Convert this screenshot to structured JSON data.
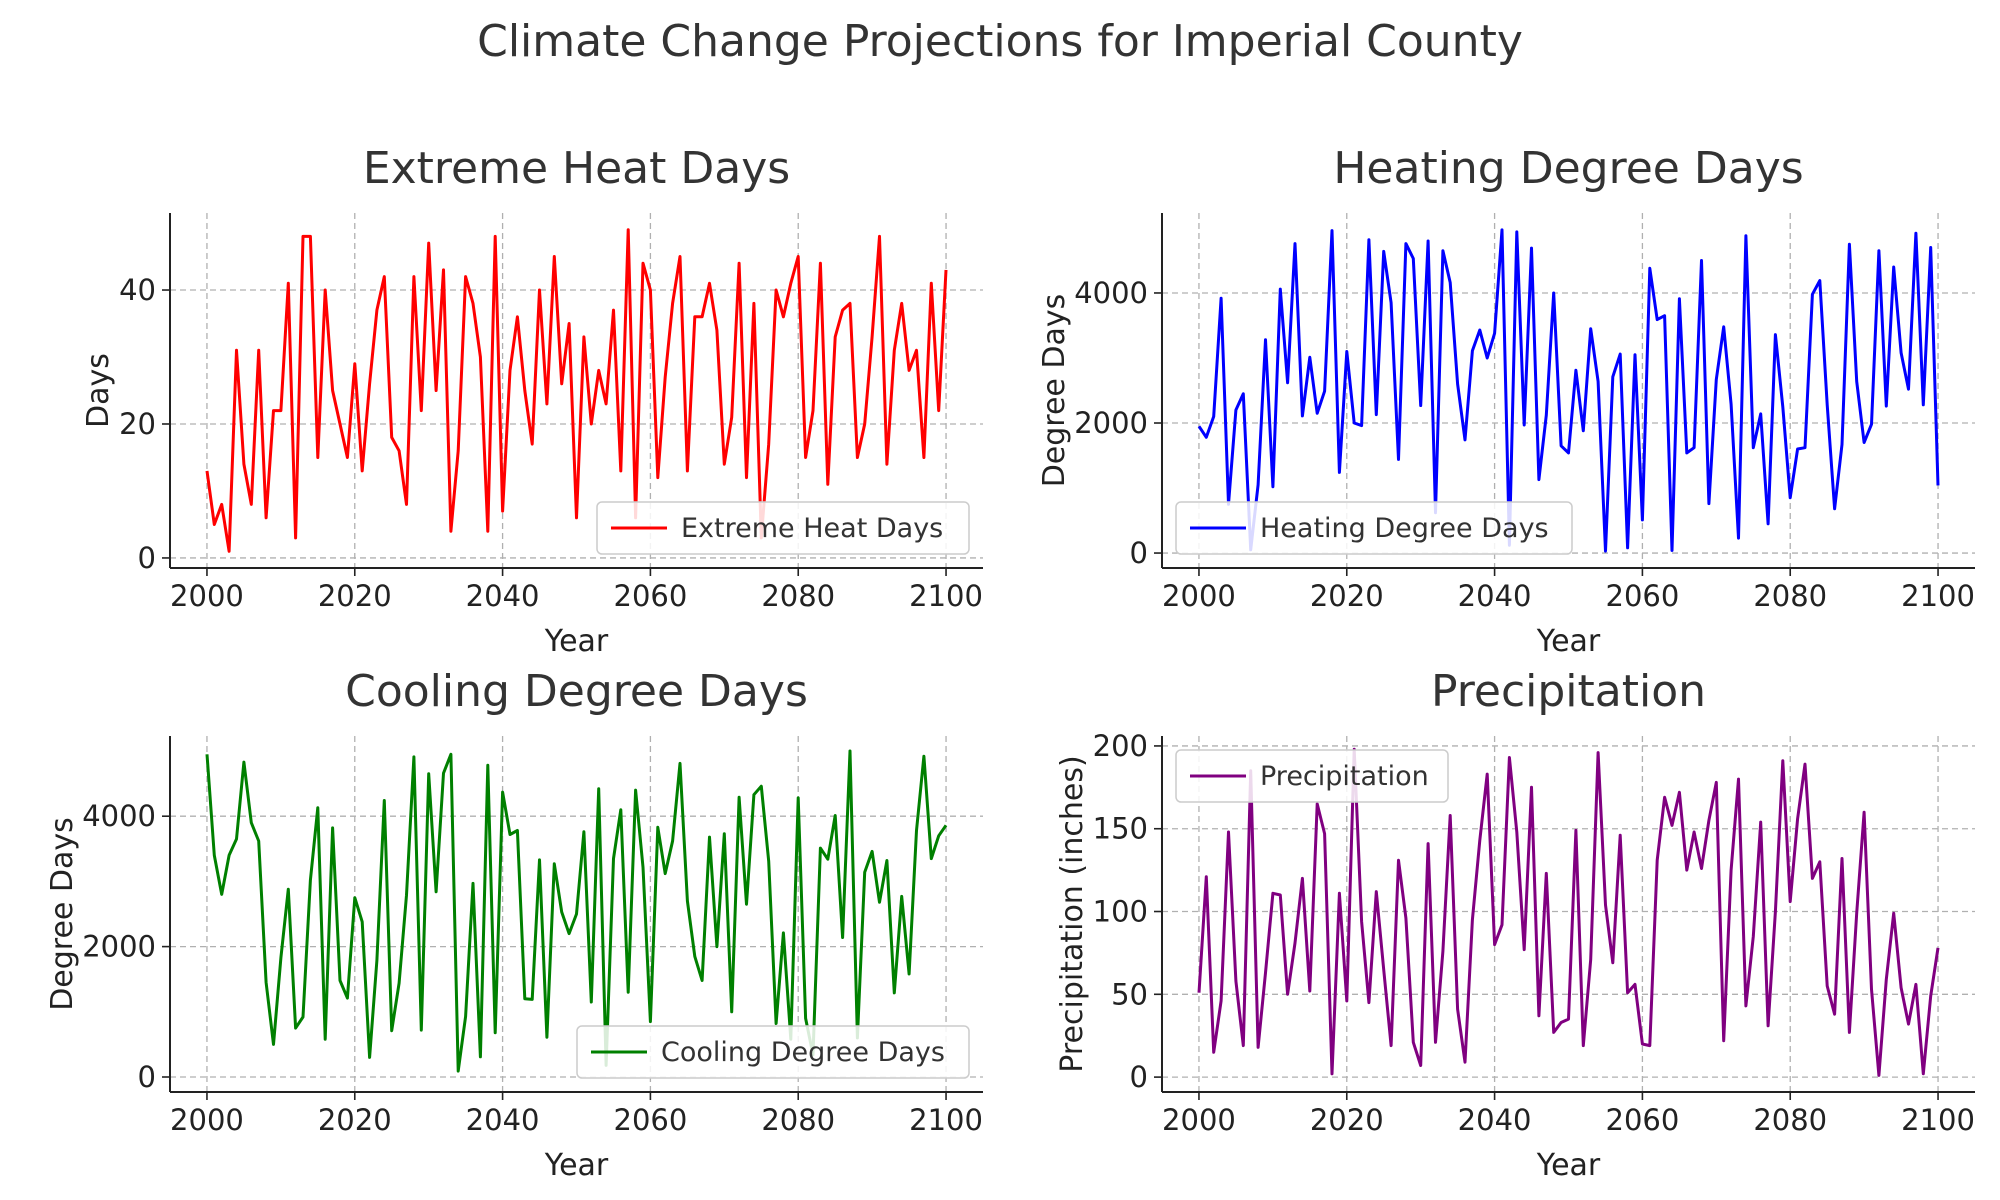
{
  "suptitle": "Climate Change Projections for Imperial County",
  "chart_data": [
    {
      "type": "line",
      "title": "Extreme Heat Days",
      "xlabel": "Year",
      "ylabel": "Days",
      "xlim": [
        1995,
        2105
      ],
      "ylim": [
        -1.5,
        51.5
      ],
      "xticks": [
        2000,
        2020,
        2040,
        2060,
        2080,
        2100
      ],
      "yticks": [
        0,
        20,
        40
      ],
      "grid": true,
      "legend_location": "lower-right",
      "series": [
        {
          "name": "Extreme Heat Days",
          "color": "#ff0000",
          "x": [
            2000,
            2001,
            2002,
            2003,
            2004,
            2005,
            2006,
            2007,
            2008,
            2009,
            2010,
            2011,
            2012,
            2013,
            2014,
            2015,
            2016,
            2017,
            2018,
            2019,
            2020,
            2021,
            2022,
            2023,
            2024,
            2025,
            2026,
            2027,
            2028,
            2029,
            2030,
            2031,
            2032,
            2033,
            2034,
            2035,
            2036,
            2037,
            2038,
            2039,
            2040,
            2041,
            2042,
            2043,
            2044,
            2045,
            2046,
            2047,
            2048,
            2049,
            2050,
            2051,
            2052,
            2053,
            2054,
            2055,
            2056,
            2057,
            2058,
            2059,
            2060,
            2061,
            2062,
            2063,
            2064,
            2065,
            2066,
            2067,
            2068,
            2069,
            2070,
            2071,
            2072,
            2073,
            2074,
            2075,
            2076,
            2077,
            2078,
            2079,
            2080,
            2081,
            2082,
            2083,
            2084,
            2085,
            2086,
            2087,
            2088,
            2089,
            2090,
            2091,
            2092,
            2093,
            2094,
            2095,
            2096,
            2097,
            2098,
            2099,
            2100
          ],
          "values": [
            13,
            5,
            8,
            1,
            31,
            14,
            8,
            31,
            6,
            22,
            22,
            41,
            3,
            48,
            48,
            15,
            40,
            25,
            20,
            15,
            29,
            13,
            26,
            37,
            42,
            18,
            16,
            8,
            42,
            22,
            47,
            25,
            43,
            4,
            16,
            42,
            38,
            30,
            4,
            48,
            7,
            28,
            36,
            25,
            17,
            40,
            23,
            45,
            26,
            35,
            6,
            33,
            20,
            28,
            23,
            37,
            13,
            49,
            6,
            44,
            40,
            12,
            27,
            38,
            45,
            13,
            36,
            36,
            41,
            34,
            14,
            21,
            44,
            12,
            38,
            3,
            17,
            40,
            36,
            41,
            45,
            15,
            22,
            44,
            11,
            33,
            37,
            38,
            15,
            20,
            33,
            48,
            14,
            31,
            38,
            28,
            31,
            15,
            41,
            22,
            43
          ]
        }
      ]
    },
    {
      "type": "line",
      "title": "Heating Degree Days",
      "xlabel": "Year",
      "ylabel": "Degree Days",
      "xlim": [
        1995,
        2105
      ],
      "ylim": [
        -230,
        5230
      ],
      "xticks": [
        2000,
        2020,
        2040,
        2060,
        2080,
        2100
      ],
      "yticks": [
        0,
        2000,
        4000
      ],
      "grid": true,
      "legend_location": "lower-left",
      "series": [
        {
          "name": "Heating Degree Days",
          "color": "#0000ff",
          "x": [
            2000,
            2001,
            2002,
            2003,
            2004,
            2005,
            2006,
            2007,
            2008,
            2009,
            2010,
            2011,
            2012,
            2013,
            2014,
            2015,
            2016,
            2017,
            2018,
            2019,
            2020,
            2021,
            2022,
            2023,
            2024,
            2025,
            2026,
            2027,
            2028,
            2029,
            2030,
            2031,
            2032,
            2033,
            2034,
            2035,
            2036,
            2037,
            2038,
            2039,
            2040,
            2041,
            2042,
            2043,
            2044,
            2045,
            2046,
            2047,
            2048,
            2049,
            2050,
            2051,
            2052,
            2053,
            2054,
            2055,
            2056,
            2057,
            2058,
            2059,
            2060,
            2061,
            2062,
            2063,
            2064,
            2065,
            2066,
            2067,
            2068,
            2069,
            2070,
            2071,
            2072,
            2073,
            2074,
            2075,
            2076,
            2077,
            2078,
            2079,
            2080,
            2081,
            2082,
            2083,
            2084,
            2085,
            2086,
            2087,
            2088,
            2089,
            2090,
            2091,
            2092,
            2093,
            2094,
            2095,
            2096,
            2097,
            2098,
            2099,
            2100
          ],
          "values": [
            1950,
            1780,
            2100,
            3920,
            750,
            2200,
            2450,
            50,
            1050,
            3280,
            1020,
            4060,
            2620,
            4760,
            2110,
            3010,
            2150,
            2490,
            4960,
            1240,
            3100,
            2000,
            1960,
            4820,
            2130,
            4640,
            3850,
            1440,
            4760,
            4530,
            2270,
            4800,
            620,
            4650,
            4160,
            2600,
            1740,
            3110,
            3430,
            3000,
            3380,
            4970,
            120,
            4940,
            1970,
            4690,
            1130,
            2120,
            4000,
            1650,
            1540,
            2810,
            1880,
            3450,
            2640,
            30,
            2710,
            3060,
            80,
            3050,
            510,
            4380,
            3590,
            3650,
            40,
            3910,
            1540,
            1620,
            4500,
            760,
            2670,
            3480,
            2290,
            230,
            4880,
            1620,
            2140,
            450,
            3360,
            2250,
            850,
            1600,
            1620,
            3980,
            4190,
            2280,
            680,
            1670,
            4750,
            2640,
            1700,
            1980,
            4650,
            2260,
            4400,
            3080,
            2520,
            4920,
            2280,
            4700,
            1040
          ]
        }
      ]
    },
    {
      "type": "line",
      "title": "Cooling Degree Days",
      "xlabel": "Year",
      "ylabel": "Degree Days",
      "xlim": [
        1995,
        2105
      ],
      "ylim": [
        -230,
        5230
      ],
      "xticks": [
        2000,
        2020,
        2040,
        2060,
        2080,
        2100
      ],
      "yticks": [
        0,
        2000,
        4000
      ],
      "grid": true,
      "legend_location": "lower-right",
      "series": [
        {
          "name": "Cooling Degree Days",
          "color": "#008000",
          "x": [
            2000,
            2001,
            2002,
            2003,
            2004,
            2005,
            2006,
            2007,
            2008,
            2009,
            2010,
            2011,
            2012,
            2013,
            2014,
            2015,
            2016,
            2017,
            2018,
            2019,
            2020,
            2021,
            2022,
            2023,
            2024,
            2025,
            2026,
            2027,
            2028,
            2029,
            2030,
            2031,
            2032,
            2033,
            2034,
            2035,
            2036,
            2037,
            2038,
            2039,
            2040,
            2041,
            2042,
            2043,
            2044,
            2045,
            2046,
            2047,
            2048,
            2049,
            2050,
            2051,
            2052,
            2053,
            2054,
            2055,
            2056,
            2057,
            2058,
            2059,
            2060,
            2061,
            2062,
            2063,
            2064,
            2065,
            2066,
            2067,
            2068,
            2069,
            2070,
            2071,
            2072,
            2073,
            2074,
            2075,
            2076,
            2077,
            2078,
            2079,
            2080,
            2081,
            2082,
            2083,
            2084,
            2085,
            2086,
            2087,
            2088,
            2089,
            2090,
            2091,
            2092,
            2093,
            2094,
            2095,
            2096,
            2097,
            2098,
            2099,
            2100
          ],
          "values": [
            4950,
            3400,
            2800,
            3400,
            3650,
            4830,
            3900,
            3620,
            1450,
            500,
            1830,
            2880,
            750,
            920,
            3020,
            4130,
            580,
            3820,
            1480,
            1210,
            2750,
            2380,
            300,
            1790,
            4240,
            710,
            1440,
            2790,
            4910,
            720,
            4650,
            2840,
            4660,
            4950,
            90,
            930,
            2970,
            310,
            4780,
            680,
            4370,
            3720,
            3780,
            1200,
            1190,
            3330,
            610,
            3270,
            2530,
            2200,
            2500,
            3760,
            1150,
            4420,
            180,
            3350,
            4100,
            1300,
            4400,
            3220,
            850,
            3830,
            3120,
            3620,
            4810,
            2700,
            1850,
            1480,
            3680,
            2000,
            3730,
            1000,
            4290,
            2650,
            4330,
            4460,
            3310,
            820,
            2210,
            580,
            4280,
            900,
            340,
            3510,
            3340,
            4010,
            2140,
            5000,
            600,
            3140,
            3460,
            2680,
            3320,
            1290,
            2770,
            1580,
            3780,
            4920,
            3350,
            3700,
            3860
          ]
        }
      ]
    },
    {
      "type": "line",
      "title": "Precipitation",
      "xlabel": "Year",
      "ylabel": "Precipitation (inches)",
      "xlim": [
        1995,
        2105
      ],
      "ylim": [
        -9,
        206
      ],
      "xticks": [
        2000,
        2020,
        2040,
        2060,
        2080,
        2100
      ],
      "yticks": [
        0,
        50,
        100,
        150,
        200
      ],
      "grid": true,
      "legend_location": "top-left",
      "series": [
        {
          "name": "Precipitation",
          "color": "#800080",
          "x": [
            2000,
            2001,
            2002,
            2003,
            2004,
            2005,
            2006,
            2007,
            2008,
            2009,
            2010,
            2011,
            2012,
            2013,
            2014,
            2015,
            2016,
            2017,
            2018,
            2019,
            2020,
            2021,
            2022,
            2023,
            2024,
            2025,
            2026,
            2027,
            2028,
            2029,
            2030,
            2031,
            2032,
            2033,
            2034,
            2035,
            2036,
            2037,
            2038,
            2039,
            2040,
            2041,
            2042,
            2043,
            2044,
            2045,
            2046,
            2047,
            2048,
            2049,
            2050,
            2051,
            2052,
            2053,
            2054,
            2055,
            2056,
            2057,
            2058,
            2059,
            2060,
            2061,
            2062,
            2063,
            2064,
            2065,
            2066,
            2067,
            2068,
            2069,
            2070,
            2071,
            2072,
            2073,
            2074,
            2075,
            2076,
            2077,
            2078,
            2079,
            2080,
            2081,
            2082,
            2083,
            2084,
            2085,
            2086,
            2087,
            2088,
            2089,
            2090,
            2091,
            2092,
            2093,
            2094,
            2095,
            2096,
            2097,
            2098,
            2099,
            2100
          ],
          "values": [
            51,
            121,
            15,
            46,
            148,
            58,
            19,
            185,
            18,
            63,
            111,
            110,
            50,
            81,
            120,
            52,
            165,
            147,
            2,
            111,
            46,
            198,
            94,
            45,
            112,
            65,
            19,
            131,
            96,
            21,
            7,
            141,
            21,
            76,
            158,
            41,
            9,
            95,
            143,
            183,
            80,
            92,
            193,
            148,
            77,
            175,
            37,
            123,
            27,
            33,
            35,
            149,
            19,
            71,
            196,
            104,
            69,
            146,
            51,
            56,
            20,
            19,
            131,
            169,
            152,
            172,
            125,
            148,
            126,
            155,
            178,
            22,
            125,
            180,
            43,
            85,
            154,
            31,
            100,
            191,
            106,
            156,
            189,
            120,
            130,
            55,
            38,
            132,
            27,
            99,
            160,
            53,
            1,
            59,
            99,
            54,
            32,
            56,
            2,
            49,
            78
          ]
        }
      ]
    }
  ]
}
